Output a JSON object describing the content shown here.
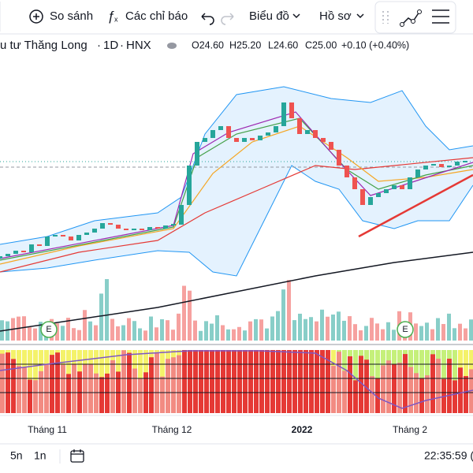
{
  "toolbar": {
    "compare": "So sánh",
    "indicators": "Các chỉ báo",
    "chart_type": "Biểu đồ",
    "profile": "Hồ sơ"
  },
  "legend": {
    "symbol": "u tư Thăng Long",
    "interval": "1D",
    "exchange": "HNX",
    "open": "O24.60",
    "high": "H25.20",
    "low": "L24.60",
    "close": "C25.00",
    "change": "+0.10 (+0.40%)"
  },
  "x_axis": {
    "labels": [
      "Tháng 11",
      "Tháng 12",
      "2022",
      "Tháng 2"
    ]
  },
  "footer": {
    "ranges": [
      "5n",
      "1n"
    ],
    "time": "22:35:59 ("
  }
}
